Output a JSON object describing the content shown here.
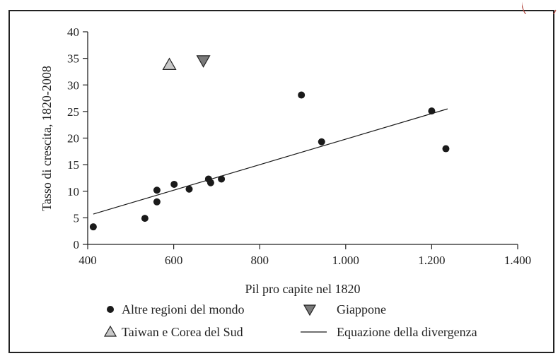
{
  "chart_data": {
    "type": "scatter",
    "xlabel": "Pil pro capite nel 1820",
    "ylabel": "Tasso di crescita, 1820-2008",
    "xlim": [
      400,
      1400
    ],
    "ylim": [
      0,
      40
    ],
    "x_ticks": [
      400,
      600,
      800,
      1000,
      1200,
      1400
    ],
    "x_tick_labels": [
      "400",
      "600",
      "800",
      "1.000",
      "1.200",
      "1.400"
    ],
    "y_ticks": [
      0,
      5,
      10,
      15,
      20,
      25,
      30,
      35,
      40
    ],
    "y_tick_labels": [
      "0",
      "5",
      "10",
      "15",
      "20",
      "25",
      "30",
      "35",
      "40"
    ],
    "grid": false,
    "legend_placement": "bottom",
    "series": [
      {
        "name": "Altre regioni del mondo",
        "marker": "circle",
        "color": "#1a1a1a",
        "points": [
          {
            "x": 413,
            "y": 3.3
          },
          {
            "x": 533,
            "y": 4.9
          },
          {
            "x": 561,
            "y": 8.0
          },
          {
            "x": 561,
            "y": 10.2
          },
          {
            "x": 601,
            "y": 11.3
          },
          {
            "x": 636,
            "y": 10.4
          },
          {
            "x": 681,
            "y": 12.3
          },
          {
            "x": 686,
            "y": 11.6
          },
          {
            "x": 711,
            "y": 12.3
          },
          {
            "x": 897,
            "y": 28.1
          },
          {
            "x": 944,
            "y": 19.3
          },
          {
            "x": 1200,
            "y": 25.1
          },
          {
            "x": 1233,
            "y": 18.0
          }
        ]
      },
      {
        "name": "Giappone",
        "marker": "triangle-down",
        "color": "#7a7a7a",
        "points": [
          {
            "x": 669,
            "y": 34.6
          }
        ]
      },
      {
        "name": "Taiwan e Corea del Sud",
        "marker": "triangle-up",
        "color": "#c8c8c8",
        "points": [
          {
            "x": 590,
            "y": 33.8
          }
        ]
      },
      {
        "name": "Equazione della divergenza",
        "marker": "line",
        "color": "#1a1a1a",
        "points": [
          {
            "x": 413,
            "y": 5.7
          },
          {
            "x": 1237,
            "y": 25.5
          }
        ]
      }
    ]
  }
}
